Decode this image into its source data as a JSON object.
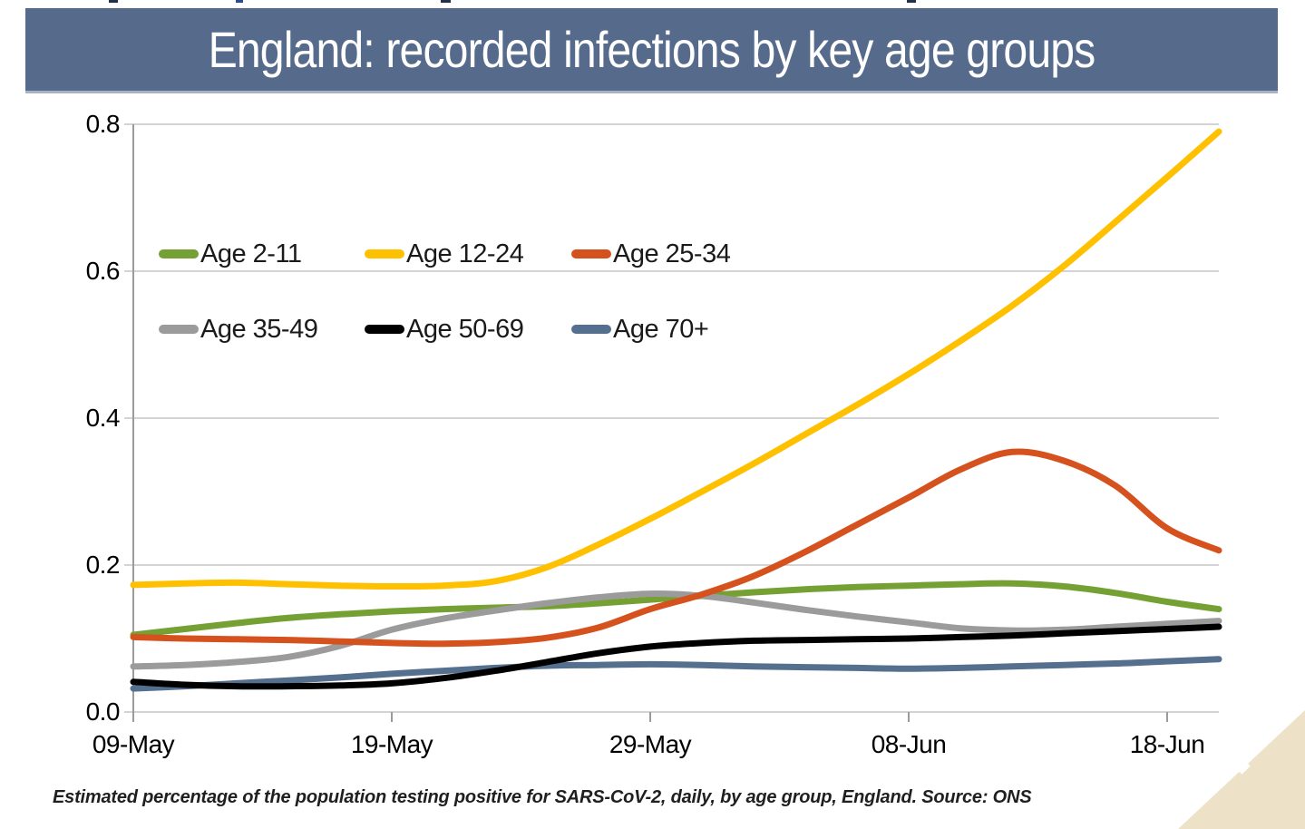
{
  "title": {
    "text": "England: recorded infections by key age groups",
    "bg_color": "#566B8C",
    "text_color": "#FFFFFF"
  },
  "footer": {
    "caption": "Estimated percentage of the population testing positive for SARS-CoV-2, daily, by age group, England. Source: ONS"
  },
  "decorations": {
    "corner_triangle_color": "#EDE2C7"
  },
  "chart_data": {
    "type": "line",
    "title": "England: recorded infections by key age groups",
    "xlabel": "",
    "ylabel": "",
    "ylim": [
      0,
      0.8
    ],
    "grid": "horizontal",
    "grid_color": "#C6C6C6",
    "axis_color": "#9B9B9B",
    "legend_position": "top-left-inside",
    "x": [
      "09-May",
      "11-May",
      "13-May",
      "15-May",
      "17-May",
      "19-May",
      "21-May",
      "23-May",
      "25-May",
      "27-May",
      "29-May",
      "31-May",
      "02-Jun",
      "04-Jun",
      "06-Jun",
      "08-Jun",
      "10-Jun",
      "12-Jun",
      "14-Jun",
      "16-Jun",
      "18-Jun",
      "20-Jun"
    ],
    "x_days": [
      0,
      2,
      4,
      6,
      8,
      10,
      12,
      14,
      16,
      18,
      20,
      22,
      24,
      26,
      28,
      30,
      32,
      34,
      36,
      38,
      40,
      42
    ],
    "x_tick_days": [
      0,
      10,
      20,
      30,
      40
    ],
    "x_tick_labels": [
      "09-May",
      "19-May",
      "29-May",
      "08-Jun",
      "18-Jun"
    ],
    "y_ticks": [
      0.0,
      0.2,
      0.4,
      0.6,
      0.8
    ],
    "y_tick_labels": [
      "0.0",
      "0.2",
      "0.4",
      "0.6",
      "0.8"
    ],
    "series": [
      {
        "name": "Age 2-11",
        "color": "#75A033",
        "values": [
          0.105,
          0.113,
          0.121,
          0.128,
          0.133,
          0.137,
          0.14,
          0.142,
          0.144,
          0.148,
          0.153,
          0.158,
          0.163,
          0.167,
          0.17,
          0.172,
          0.174,
          0.175,
          0.171,
          0.162,
          0.15,
          0.14
        ]
      },
      {
        "name": "Age 12-24",
        "color": "#FFC000",
        "values": [
          0.173,
          0.175,
          0.176,
          0.174,
          0.172,
          0.171,
          0.172,
          0.178,
          0.197,
          0.228,
          0.263,
          0.3,
          0.338,
          0.378,
          0.418,
          0.46,
          0.505,
          0.553,
          0.607,
          0.667,
          0.728,
          0.79
        ]
      },
      {
        "name": "Age 25-34",
        "color": "#D5511D",
        "values": [
          0.102,
          0.1,
          0.099,
          0.098,
          0.096,
          0.094,
          0.093,
          0.095,
          0.101,
          0.115,
          0.14,
          0.16,
          0.185,
          0.218,
          0.255,
          0.292,
          0.33,
          0.354,
          0.342,
          0.308,
          0.25,
          0.22
        ]
      },
      {
        "name": "Age 35-49",
        "color": "#9B9B9B",
        "values": [
          0.062,
          0.064,
          0.068,
          0.075,
          0.09,
          0.112,
          0.127,
          0.138,
          0.148,
          0.156,
          0.161,
          0.158,
          0.149,
          0.139,
          0.13,
          0.122,
          0.114,
          0.111,
          0.112,
          0.116,
          0.12,
          0.124
        ]
      },
      {
        "name": "Age 50-69",
        "color": "#000000",
        "values": [
          0.041,
          0.037,
          0.035,
          0.035,
          0.036,
          0.039,
          0.046,
          0.056,
          0.068,
          0.08,
          0.089,
          0.094,
          0.097,
          0.098,
          0.099,
          0.1,
          0.102,
          0.104,
          0.107,
          0.11,
          0.113,
          0.116
        ]
      },
      {
        "name": "Age 70+",
        "color": "#54708E",
        "values": [
          0.032,
          0.035,
          0.039,
          0.043,
          0.047,
          0.052,
          0.056,
          0.06,
          0.063,
          0.064,
          0.065,
          0.064,
          0.062,
          0.061,
          0.06,
          0.059,
          0.06,
          0.062,
          0.064,
          0.066,
          0.069,
          0.072
        ]
      }
    ]
  }
}
